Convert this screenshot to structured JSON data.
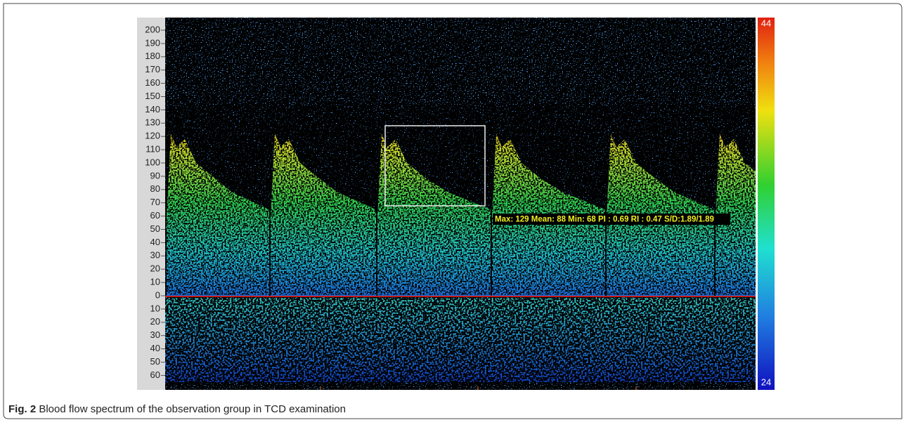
{
  "figure": {
    "y_axis_labels": [
      "200",
      "190",
      "180",
      "170",
      "160",
      "150",
      "140",
      "130",
      "120",
      "110",
      "100",
      "90",
      "80",
      "70",
      "60",
      "50",
      "40",
      "30",
      "20",
      "10",
      "0",
      "10",
      "20",
      "30",
      "40",
      "50",
      "60"
    ],
    "color_scale": {
      "max_label": "44",
      "min_label": "24"
    },
    "measurement": "Max: 129 Mean: 88 Min: 68 PI : 0.69 RI : 0.47 S/D:1.89/1.89"
  },
  "caption": {
    "label": "Fig. 2",
    "text": "Blood flow spectrum of the observation group in TCD examination"
  }
}
